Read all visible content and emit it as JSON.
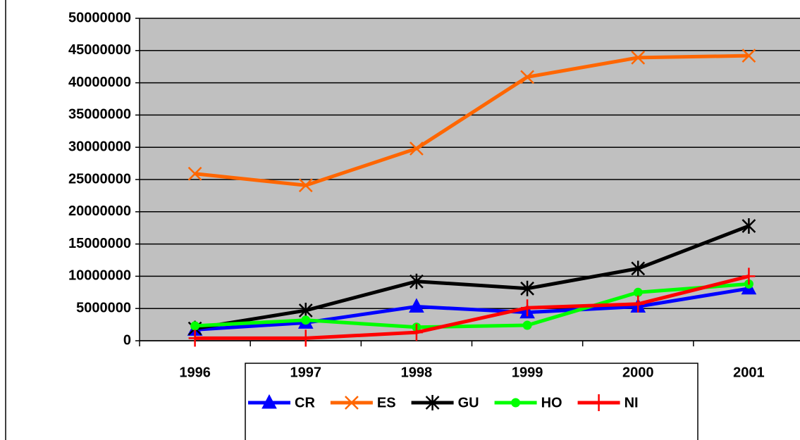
{
  "chart_data": {
    "type": "line",
    "categories": [
      "1996",
      "1997",
      "1998",
      "1999",
      "2000",
      "2001"
    ],
    "series": [
      {
        "name": "CR",
        "color": "#0000ff",
        "marker": "triangle",
        "values": [
          1700000,
          2800000,
          5300000,
          4400000,
          5300000,
          8100000
        ]
      },
      {
        "name": "ES",
        "color": "#ff6600",
        "marker": "x",
        "values": [
          25900000,
          24100000,
          29800000,
          40900000,
          43900000,
          44200000
        ]
      },
      {
        "name": "GU",
        "color": "#000000",
        "marker": "asterisk",
        "values": [
          1900000,
          4700000,
          9200000,
          8100000,
          11200000,
          17800000
        ]
      },
      {
        "name": "HO",
        "color": "#00ff00",
        "marker": "circle",
        "values": [
          2300000,
          3200000,
          2100000,
          2400000,
          7500000,
          8800000
        ]
      },
      {
        "name": "NI",
        "color": "#ff0000",
        "marker": "plus",
        "values": [
          400000,
          400000,
          1300000,
          5100000,
          5700000,
          10000000
        ]
      }
    ],
    "ylim": [
      0,
      50000000
    ],
    "yticks": [
      0,
      5000000,
      10000000,
      15000000,
      20000000,
      25000000,
      30000000,
      35000000,
      40000000,
      45000000,
      50000000
    ],
    "grid": true,
    "legend": "bottom"
  }
}
